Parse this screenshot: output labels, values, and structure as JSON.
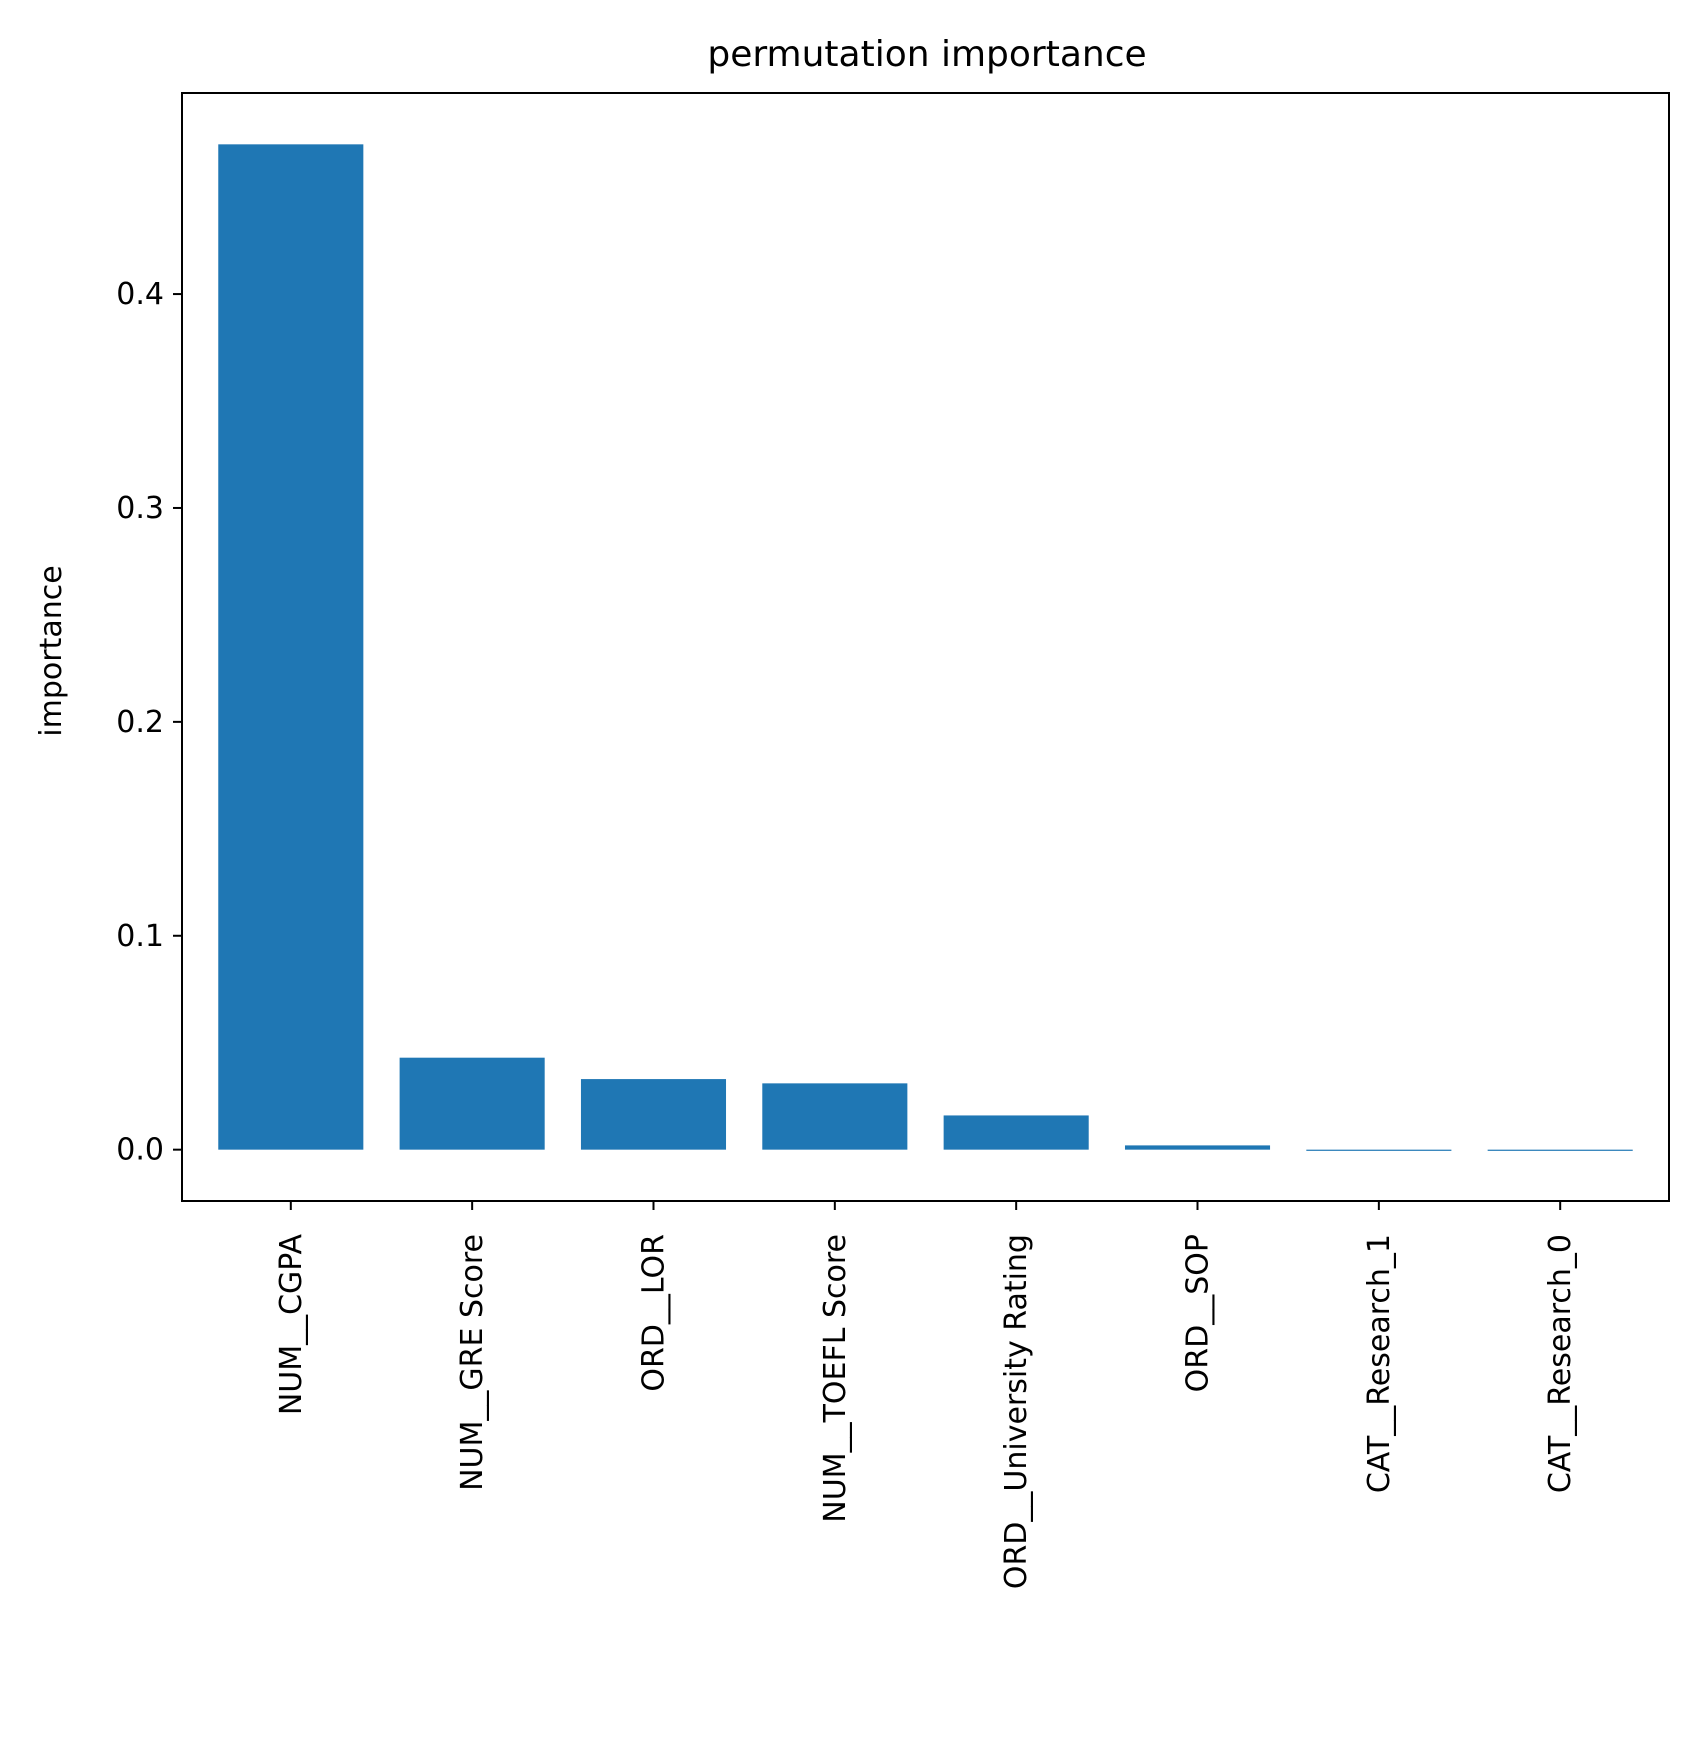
{
  "chart_data": {
    "type": "bar",
    "title": "permutation importance",
    "xlabel": "",
    "ylabel": "importance",
    "categories": [
      "NUM__CGPA",
      "NUM__GRE Score",
      "ORD__LOR",
      "NUM__TOEFL Score",
      "ORD__University Rating",
      "ORD__SOP",
      "CAT__Research_1",
      "CAT__Research_0"
    ],
    "values": [
      0.47,
      0.043,
      0.033,
      0.031,
      0.016,
      0.002,
      -0.0005,
      -0.0005
    ],
    "ylim": [
      -0.024,
      0.494
    ],
    "yticks": [
      "0.0",
      "0.1",
      "0.2",
      "0.3",
      "0.4"
    ],
    "grid": false,
    "bar_color": "#1f77b4"
  }
}
